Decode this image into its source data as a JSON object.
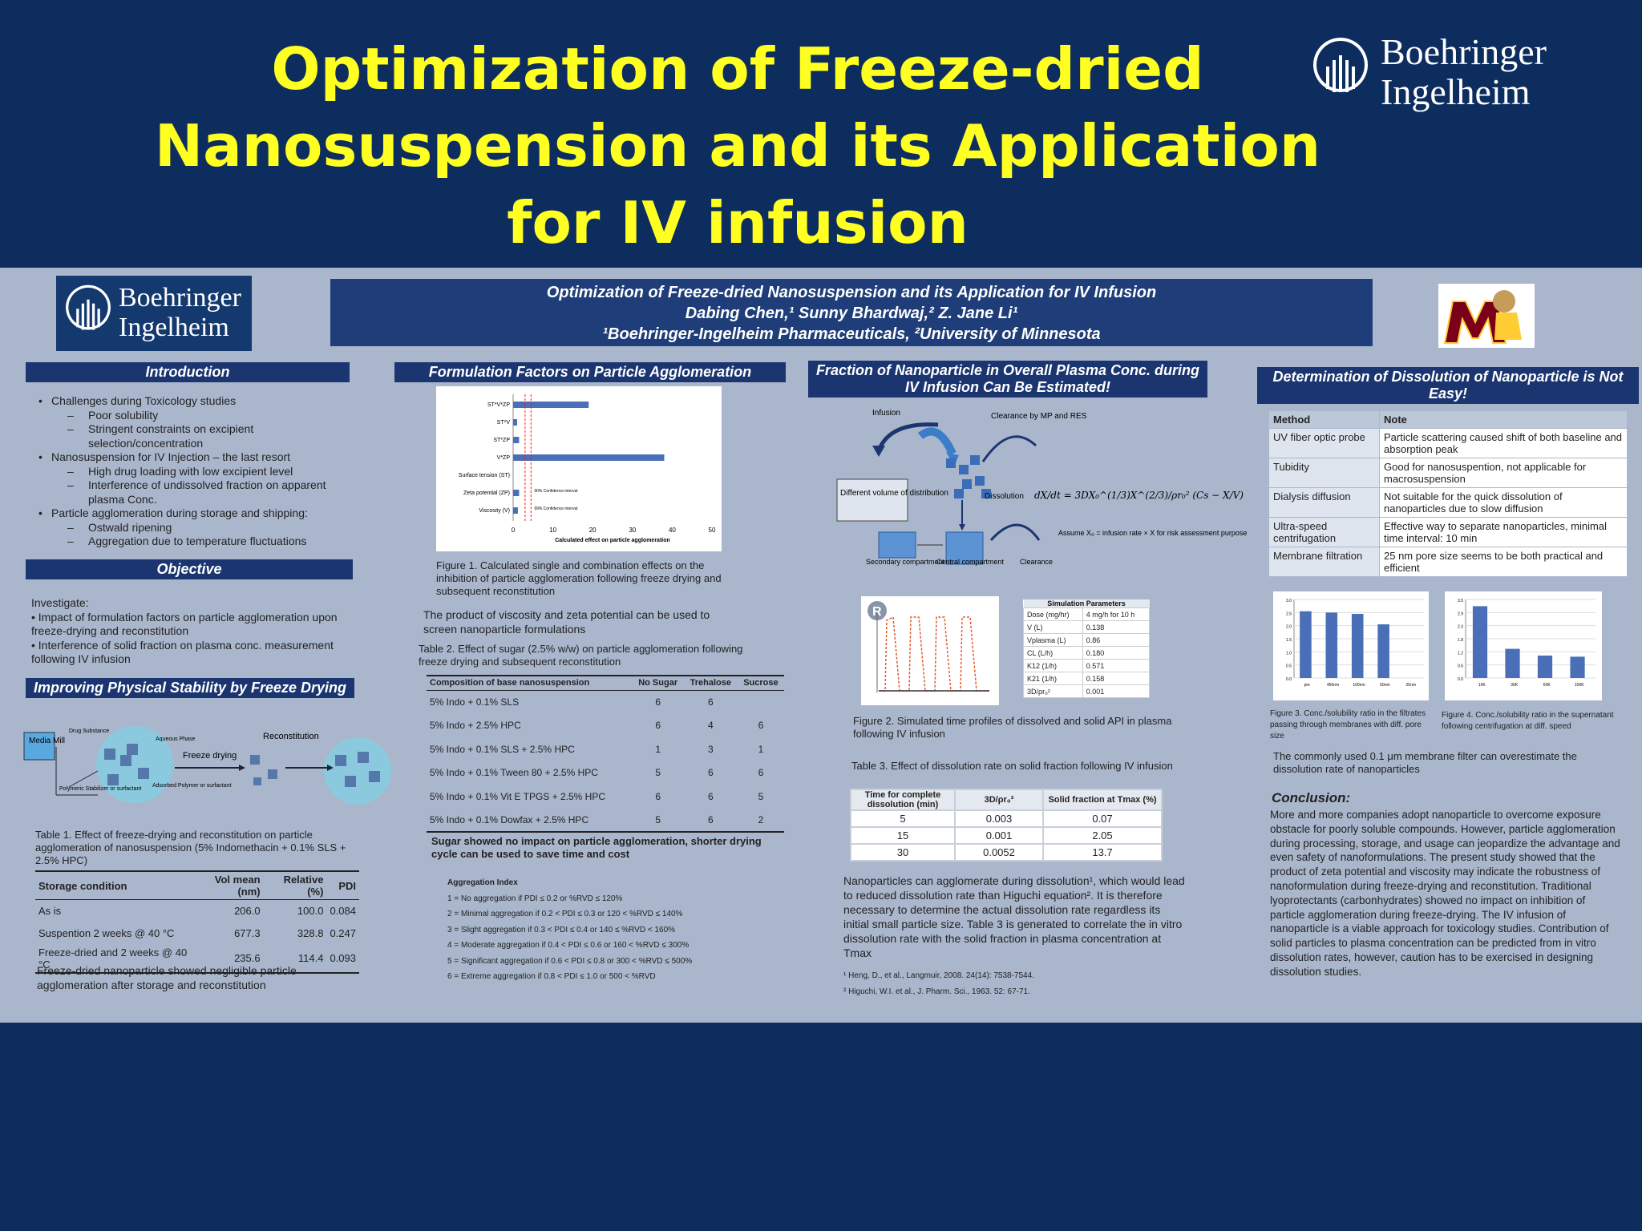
{
  "slide": {
    "title": "Optimization of Freeze-dried Nanosuspension and its Application for IV infusion",
    "logo_line1": "Boehringer",
    "logo_line2": "Ingelheim"
  },
  "poster": {
    "logo_line1": "Boehringer",
    "logo_line2": "Ingelheim",
    "header_title": "Optimization of Freeze-dried Nanosuspension and its Application for IV Infusion",
    "header_authors": "Dabing Chen,¹ Sunny Bhardwaj,² Z. Jane Li¹",
    "header_affil": "¹Boehringer-Ingelheim Pharmaceuticals, ²University of Minnesota",
    "intro": {
      "heading": "Introduction",
      "items": [
        {
          "level": 1,
          "text": "Challenges during Toxicology studies"
        },
        {
          "level": 2,
          "text": "Poor solubility"
        },
        {
          "level": 2,
          "text": "Stringent constraints on excipient selection/concentration"
        },
        {
          "level": 1,
          "text": "Nanosuspension for IV Injection – the last resort"
        },
        {
          "level": 2,
          "text": "High drug loading with low excipient level"
        },
        {
          "level": 2,
          "text": "Interference of undissolved fraction on apparent plasma Conc."
        },
        {
          "level": 1,
          "text": "Particle agglomeration during storage and shipping:"
        },
        {
          "level": 2,
          "text": "Ostwald ripening"
        },
        {
          "level": 2,
          "text": "Aggregation due to temperature fluctuations"
        }
      ]
    },
    "objective": {
      "heading": "Objective",
      "lines": [
        "Investigate:",
        "• Impact of formulation factors on particle agglomeration upon freeze-drying and reconstitution",
        "• Interference of solid fraction on plasma conc. measurement following IV infusion"
      ]
    },
    "stability": {
      "heading": "Improving Physical Stability by Freeze Drying",
      "diagram_labels": {
        "media_mill": "Media Mill",
        "drug": "Drug Substance",
        "aqueous": "Aqueous Phase",
        "polymer": "Polymeric Stabilizer or surfactant",
        "adsorbed": "Adsorbed Polymer or surfactant",
        "freeze": "Freeze drying",
        "recon": "Reconstitution"
      },
      "table_caption": "Table 1. Effect of freeze-drying and reconstitution on particle agglomeration of nanosuspension (5% Indomethacin + 0.1% SLS + 2.5% HPC)",
      "table_headers": [
        "Storage condition",
        "Vol mean (nm)",
        "Relative (%)",
        "PDI"
      ],
      "table_rows": [
        [
          "As is",
          "206.0",
          "100.0",
          "0.084"
        ],
        [
          "Suspention 2 weeks @ 40 °C",
          "677.3",
          "328.8",
          "0.247"
        ],
        [
          "Freeze-dried and 2 weeks @ 40 °C",
          "235.6",
          "114.4",
          "0.093"
        ]
      ],
      "conclusion": "Freeze-dried nanoparticle showed negligible particle agglomeration after storage and reconstitution"
    },
    "formulation": {
      "heading": "Formulation Factors on Particle Agglomeration",
      "fig1_caption": "Figure 1. Calculated single and combination effects on the inhibition of particle agglomeration following freeze drying and subsequent reconstitution",
      "fig1_note": "The product of viscosity and zeta potential can be used to screen nanoparticle formulations",
      "table2_caption": "Table 2. Effect of sugar (2.5% w/w) on particle agglomeration following freeze drying and subsequent reconstitution",
      "table2_headers": [
        "Composition of base nanosuspension",
        "No Sugar",
        "Trehalose",
        "Sucrose"
      ],
      "table2_rows": [
        [
          "5% Indo + 0.1% SLS",
          "6",
          "6",
          ""
        ],
        [
          "5% Indo + 2.5% HPC",
          "6",
          "4",
          "6"
        ],
        [
          "5% Indo + 0.1% SLS + 2.5% HPC",
          "1",
          "3",
          "1"
        ],
        [
          "5% Indo + 0.1% Tween 80 + 2.5% HPC",
          "5",
          "6",
          "6"
        ],
        [
          "5% Indo + 0.1% Vit E TPGS + 2.5% HPC",
          "6",
          "6",
          "5"
        ],
        [
          "5% Indo + 0.1% Dowfax + 2.5% HPC",
          "5",
          "6",
          "2"
        ]
      ],
      "sugar_note": "Sugar showed no impact on particle agglomeration, shorter drying cycle can be used to save time and cost",
      "agg_heading": "Aggregation Index",
      "agg_lines": [
        "1 = No aggregation if PDI ≤ 0.2 or %RVD ≤ 120%",
        "2 = Minimal aggregation if 0.2 < PDI ≤ 0.3 or 120 < %RVD ≤ 140%",
        "3 = Slight aggregation if 0.3 < PDI ≤ 0.4 or 140 ≤ %RVD < 160%",
        "4 = Moderate aggregation if 0.4 < PDI ≤ 0.6 or 160 < %RVD ≤ 300%",
        "5 = Significant aggregation if 0.6 < PDI ≤ 0.8 or 300 < %RVD ≤ 500%",
        "6 = Extreme aggregation if 0.8 < PDI ≤ 1.0 or 500 < %RVD"
      ]
    },
    "fraction": {
      "heading": "Fraction of Nanoparticle in Overall Plasma Conc. during IV Infusion Can Be Estimated!",
      "diagram_labels": {
        "infusion": "Infusion",
        "clearance_mp": "Clearance by MP and RES",
        "dist": "Different volume of distribution",
        "dissolution": "Dissolution",
        "secondary": "Secondary compartment",
        "central": "Central compartment",
        "clearance": "Clearance",
        "assume": "Assume X₀ = infusion rate × X for risk assessment purpose"
      },
      "sim_heading": "Simulation Parameters",
      "sim_rows": [
        [
          "Dose (mg/hr)",
          "4 mg/h for 10 h"
        ],
        [
          "V (L)",
          "0.138"
        ],
        [
          "Vplasma (L)",
          "0.86"
        ],
        [
          "CL (L/h)",
          "0.180"
        ],
        [
          "K12 (1/h)",
          "0.571"
        ],
        [
          "K21 (1/h)",
          "0.158"
        ],
        [
          "3D/ρr₀²",
          "0.001"
        ]
      ],
      "fig2_caption": "Figure 2. Simulated time profiles of dissolved and solid API in plasma following IV infusion",
      "table3_caption": "Table 3. Effect of dissolution rate on solid fraction following IV infusion",
      "table3_headers": [
        "Time for complete dissolution (min)",
        "3D/ρr₀²",
        "Solid fraction at Tmax (%)"
      ],
      "table3_rows": [
        [
          "5",
          "0.003",
          "0.07"
        ],
        [
          "15",
          "0.001",
          "2.05"
        ],
        [
          "30",
          "0.0052",
          "13.7"
        ]
      ],
      "body": "Nanoparticles can agglomerate during dissolution¹, which would lead to reduced dissolution rate than Higuchi equation². It is therefore necessary to determine the actual dissolution rate regardless its initial small particle size. Table 3 is generated to correlate the in vitro dissolution rate with the solid fraction in plasma concentration at Tmax",
      "ref1": "¹ Heng, D., et al., Langmuir, 2008. 24(14): 7538-7544.",
      "ref2": "² Higuchi, W.I. et al., J. Pharm. Sci., 1963. 52: 67-71."
    },
    "dissolution": {
      "heading": "Determination of Dissolution of Nanoparticle is Not Easy!",
      "table_headers": [
        "Method",
        "Note"
      ],
      "table_rows": [
        [
          "UV fiber optic probe",
          "Particle scattering caused shift of both baseline and absorption peak"
        ],
        [
          "Tubidity",
          "Good for nanosuspention, not applicable for macrosuspension"
        ],
        [
          "Dialysis diffusion",
          "Not suitable for the quick dissolution of nanoparticles due to slow diffusion"
        ],
        [
          "Ultra-speed centrifugation",
          "Effective way to separate nanoparticles, minimal time interval: 10 min"
        ],
        [
          "Membrane filtration",
          "25 nm pore size seems to be both practical and efficient"
        ]
      ],
      "fig3_caption": "Figure 3. Conc./solubility ratio in the filtrates passing through membranes with diff. pore size",
      "fig4_caption": "Figure 4. Conc./solubility ratio in the supernatant following centrifugation at diff. speed",
      "note": "The commonly used 0.1 μm membrane filter can overestimate the dissolution rate of nanoparticles",
      "conclusion_heading": "Conclusion:",
      "conclusion": "More and more companies adopt nanoparticle to overcome exposure obstacle for poorly soluble compounds. However, particle agglomeration during processing, storage, and usage can jeopardize the advantage and even safety of nanoformulations. The present study showed that the product of zeta potential and viscosity may indicate the robustness of nanoformulation during freeze-drying and reconstitution. Traditional lyoprotectants (carbonhydrates) showed no impact on inhibition of particle agglomeration during freeze-drying. The IV infusion of nanoparticle is a viable approach for toxicology studies. Contribution of solid particles to plasma concentration can be predicted from in vitro dissolution rates, however, caution has to be exercised in designing dissolution studies."
    }
  },
  "chart_data": [
    {
      "type": "bar",
      "orientation": "horizontal",
      "categories": [
        "ST*V*ZP",
        "ST*V",
        "ST*ZP",
        "V*ZP",
        "Surface tension (ST)",
        "Zeta potential (ZP)",
        "Viscosity (V)"
      ],
      "values": [
        19,
        1,
        1.5,
        38,
        0,
        1.5,
        1.2
      ],
      "xlabel": "Calculated effect on particle agglomeration",
      "xlim": [
        0,
        50
      ],
      "xticks": [
        0,
        10,
        20,
        30,
        40,
        50
      ],
      "annotations": [
        "90% Confidence interval",
        "99% Confidence interval"
      ],
      "reference_lines": [
        3,
        4.5
      ],
      "color": "#4a6fb8"
    },
    {
      "type": "bar",
      "categories": [
        "pre",
        "450nm",
        "100nm",
        "50nm",
        "25nm"
      ],
      "values": [
        2.55,
        2.5,
        2.45,
        2.05,
        0
      ],
      "ylim": [
        0,
        3.0
      ],
      "color": "#4a6fb8"
    },
    {
      "type": "bar",
      "categories": [
        "10K",
        "30K",
        "60K",
        "100K"
      ],
      "values": [
        3.2,
        1.3,
        1.0,
        0.95
      ],
      "ylim": [
        0,
        3.5
      ],
      "color": "#4a6fb8"
    }
  ]
}
